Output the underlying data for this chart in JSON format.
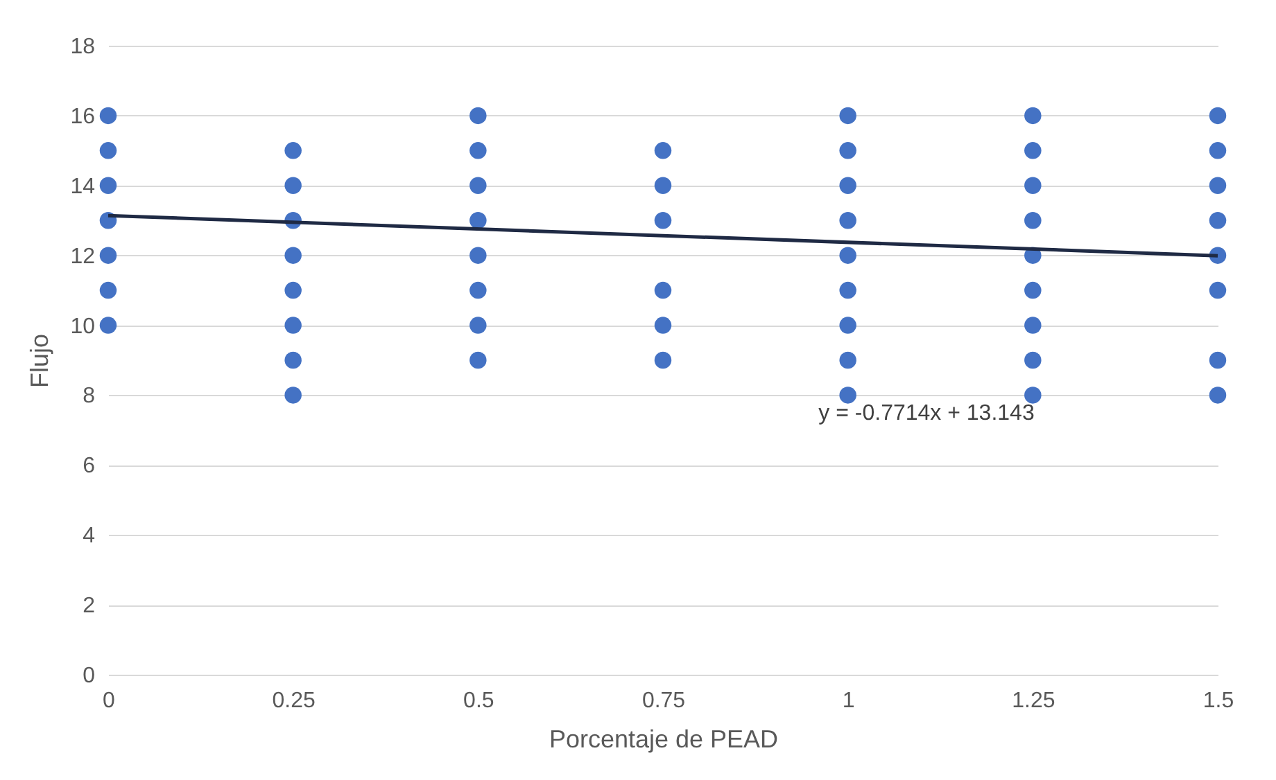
{
  "chart_data": {
    "type": "scatter",
    "xlabel": "Porcentaje de PEAD",
    "ylabel": "Flujo",
    "xlim": [
      0,
      1.5
    ],
    "xticks": [
      0,
      0.25,
      0.5,
      0.75,
      1,
      1.25,
      1.5
    ],
    "ylim": [
      0,
      18
    ],
    "yticks": [
      0,
      2,
      4,
      6,
      8,
      10,
      12,
      14,
      16,
      18
    ],
    "grid": "y",
    "legend": false,
    "series": [
      {
        "color": "#4472c4",
        "marker": "circle",
        "x": [
          0,
          0,
          0,
          0,
          0,
          0,
          0,
          0.25,
          0.25,
          0.25,
          0.25,
          0.25,
          0.25,
          0.25,
          0.25,
          0.5,
          0.5,
          0.5,
          0.5,
          0.5,
          0.5,
          0.5,
          0.5,
          0.75,
          0.75,
          0.75,
          0.75,
          0.75,
          0.75,
          1,
          1,
          1,
          1,
          1,
          1,
          1,
          1,
          1,
          1.25,
          1.25,
          1.25,
          1.25,
          1.25,
          1.25,
          1.25,
          1.25,
          1.25,
          1.5,
          1.5,
          1.5,
          1.5,
          1.5,
          1.5,
          1.5,
          1.5
        ],
        "values": [
          16,
          15,
          14,
          13,
          12,
          11,
          10,
          15,
          14,
          13,
          12,
          11,
          10,
          9,
          8,
          16,
          15,
          14,
          13,
          12,
          11,
          10,
          9,
          15,
          14,
          13,
          11,
          10,
          9,
          16,
          15,
          14,
          13,
          12,
          11,
          10,
          9,
          8,
          16,
          15,
          14,
          13,
          12,
          11,
          10,
          9,
          8,
          16,
          15,
          14,
          13,
          12,
          11,
          9,
          8
        ]
      },
      {
        "type": "line",
        "color": "#1f2a44",
        "line_style": "solid",
        "x": [
          0,
          1.5
        ],
        "values": [
          13.14,
          11.99
        ]
      }
    ],
    "annotations": [
      "y = -0.7714x + 13.143"
    ]
  }
}
